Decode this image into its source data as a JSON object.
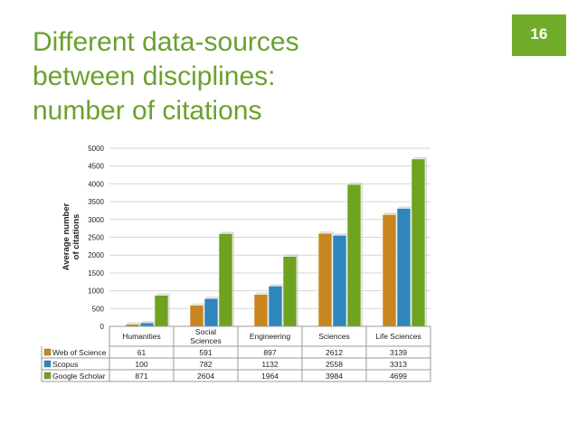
{
  "slide": {
    "title_lines": [
      "Different data-sources",
      "between disciplines:",
      "number of citations"
    ],
    "number": "16"
  },
  "colors": {
    "accent": "#71ad2b",
    "title": "#6aa12d",
    "series": [
      "#c9861f",
      "#2e86bb",
      "#6ea21f"
    ]
  },
  "chart_data": {
    "type": "bar",
    "categories": [
      "Humanities",
      "Social Sciences",
      "Engineering",
      "Sciences",
      "Life Sciences"
    ],
    "category_label_lines": [
      [
        "Humanities"
      ],
      [
        "Social",
        "Sciences"
      ],
      [
        "Engineering"
      ],
      [
        "Sciences"
      ],
      [
        "Life Sciences"
      ]
    ],
    "series": [
      {
        "name": "Web of Science",
        "values": [
          61,
          591,
          897,
          2612,
          3139
        ]
      },
      {
        "name": "Scopus",
        "values": [
          100,
          782,
          1132,
          2558,
          3313
        ]
      },
      {
        "name": "Google Scholar",
        "values": [
          871,
          2604,
          1964,
          3984,
          4699
        ]
      }
    ],
    "ylabel_lines": [
      "Average number",
      "of citations"
    ],
    "yticks": [
      0,
      500,
      1000,
      1500,
      2000,
      2500,
      3000,
      3500,
      4000,
      4500,
      5000
    ],
    "ylim": [
      0,
      5000
    ],
    "grid": true,
    "legend": "data table below chart"
  }
}
